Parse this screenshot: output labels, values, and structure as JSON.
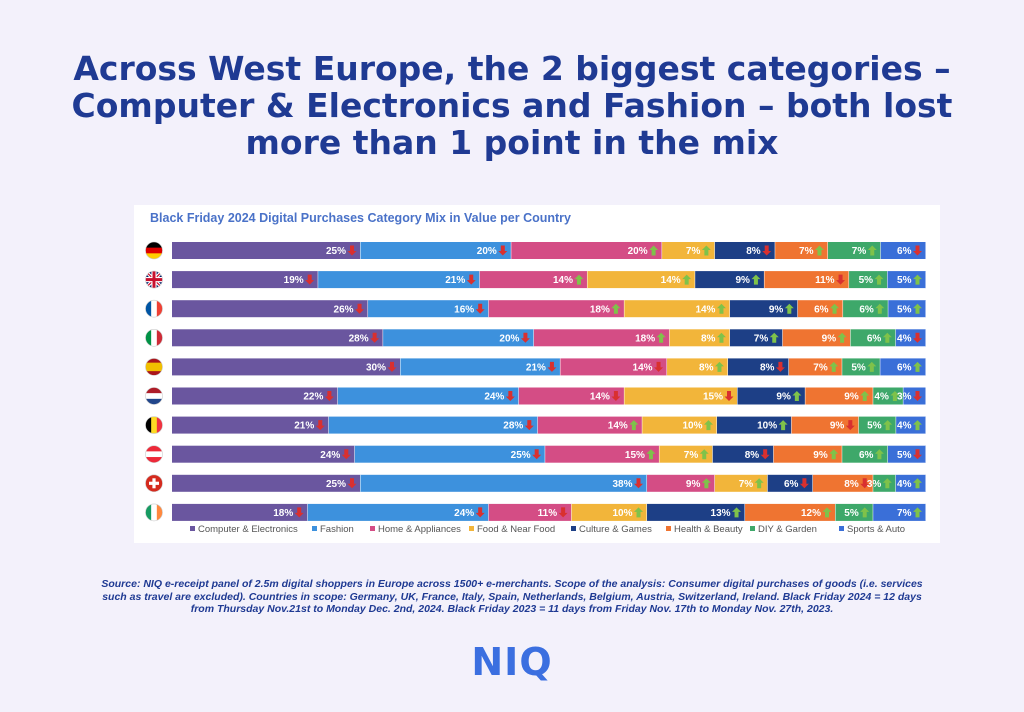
{
  "headline": [
    "Across West Europe, the 2 biggest categories –",
    "Computer & Electronics and Fashion – both lost",
    "more than 1 point in the mix"
  ],
  "source_note": [
    "Source: NIQ e-receipt panel of 2.5m digital shoppers in Europe across 1500+ e-merchants. Scope of the analysis: Consumer digital purchases of goods (i.e. services",
    "such as travel are excluded). Countries in scope: Germany, UK, France, Italy, Spain, Netherlands, Belgium, Austria, Switzerland, Ireland. Black Friday 2024 = 12 days",
    "from Thursday Nov.21st to Monday Dec. 2nd, 2024. Black Friday 2023 = 11 days from Friday Nov. 17th to Monday Nov. 27th, 2023."
  ],
  "logo_text": "NIQ",
  "chart_data": {
    "type": "bar",
    "orientation": "horizontal-stacked-100",
    "title": "Black Friday 2024 Digital Purchases Category Mix in Value per Country",
    "legend_position": "bottom",
    "countries": [
      {
        "flag": "germany-flag",
        "values": [
          25,
          20,
          20,
          7,
          8,
          7,
          7,
          6
        ],
        "change": [
          "down",
          "down",
          "up",
          "up",
          "down",
          "up",
          "up",
          "down"
        ]
      },
      {
        "flag": "uk-flag",
        "values": [
          19,
          21,
          14,
          14,
          9,
          11,
          5,
          5
        ],
        "change": [
          "down",
          "down",
          "up",
          "up",
          "up",
          "down",
          "up",
          "up"
        ]
      },
      {
        "flag": "france-flag",
        "values": [
          26,
          16,
          18,
          14,
          9,
          6,
          6,
          5
        ],
        "change": [
          "down",
          "down",
          "up",
          "up",
          "up",
          "up",
          "up",
          "up"
        ]
      },
      {
        "flag": "italy-flag",
        "values": [
          28,
          20,
          18,
          8,
          7,
          9,
          6,
          4
        ],
        "change": [
          "down",
          "down",
          "up",
          "up",
          "up",
          "up",
          "up",
          "down"
        ]
      },
      {
        "flag": "spain-flag",
        "values": [
          30,
          21,
          14,
          8,
          8,
          7,
          5,
          6
        ],
        "change": [
          "down",
          "down",
          "down",
          "up",
          "down",
          "up",
          "up",
          "up"
        ]
      },
      {
        "flag": "netherlands-flag",
        "values": [
          22,
          24,
          14,
          15,
          9,
          9,
          4,
          3
        ],
        "change": [
          "down",
          "down",
          "down",
          "down",
          "up",
          "up",
          "up",
          "down"
        ]
      },
      {
        "flag": "belgium-flag",
        "values": [
          21,
          28,
          14,
          10,
          10,
          9,
          5,
          4
        ],
        "change": [
          "down",
          "down",
          "up",
          "up",
          "up",
          "down",
          "up",
          "up"
        ]
      },
      {
        "flag": "austria-flag",
        "values": [
          24,
          25,
          15,
          7,
          8,
          9,
          6,
          5
        ],
        "change": [
          "down",
          "down",
          "up",
          "up",
          "down",
          "up",
          "up",
          "down"
        ]
      },
      {
        "flag": "switzerland-flag",
        "values": [
          25,
          38,
          9,
          7,
          6,
          8,
          3,
          4
        ],
        "change": [
          "down",
          "down",
          "up",
          "up",
          "down",
          "down",
          "up",
          "up"
        ]
      },
      {
        "flag": "ireland-flag",
        "values": [
          18,
          24,
          11,
          10,
          13,
          12,
          5,
          7
        ],
        "change": [
          "down",
          "down",
          "down",
          "up",
          "up",
          "up",
          "up",
          "up"
        ]
      }
    ],
    "series": [
      {
        "name": "Computer & Electronics",
        "color": "#6a569f"
      },
      {
        "name": "Fashion",
        "color": "#3d91dd"
      },
      {
        "name": "Home & Appliances",
        "color": "#d44d85"
      },
      {
        "name": "Food & Near Food",
        "color": "#f2b53a"
      },
      {
        "name": "Culture & Games",
        "color": "#1d3f86"
      },
      {
        "name": "Health & Beauty",
        "color": "#ef7431"
      },
      {
        "name": "DIY & Garden",
        "color": "#3ea86a"
      },
      {
        "name": "Sports & Auto",
        "color": "#3a6fd8"
      }
    ],
    "arrow_colors": {
      "up": "#7fc24a",
      "down": "#d9302f"
    }
  }
}
